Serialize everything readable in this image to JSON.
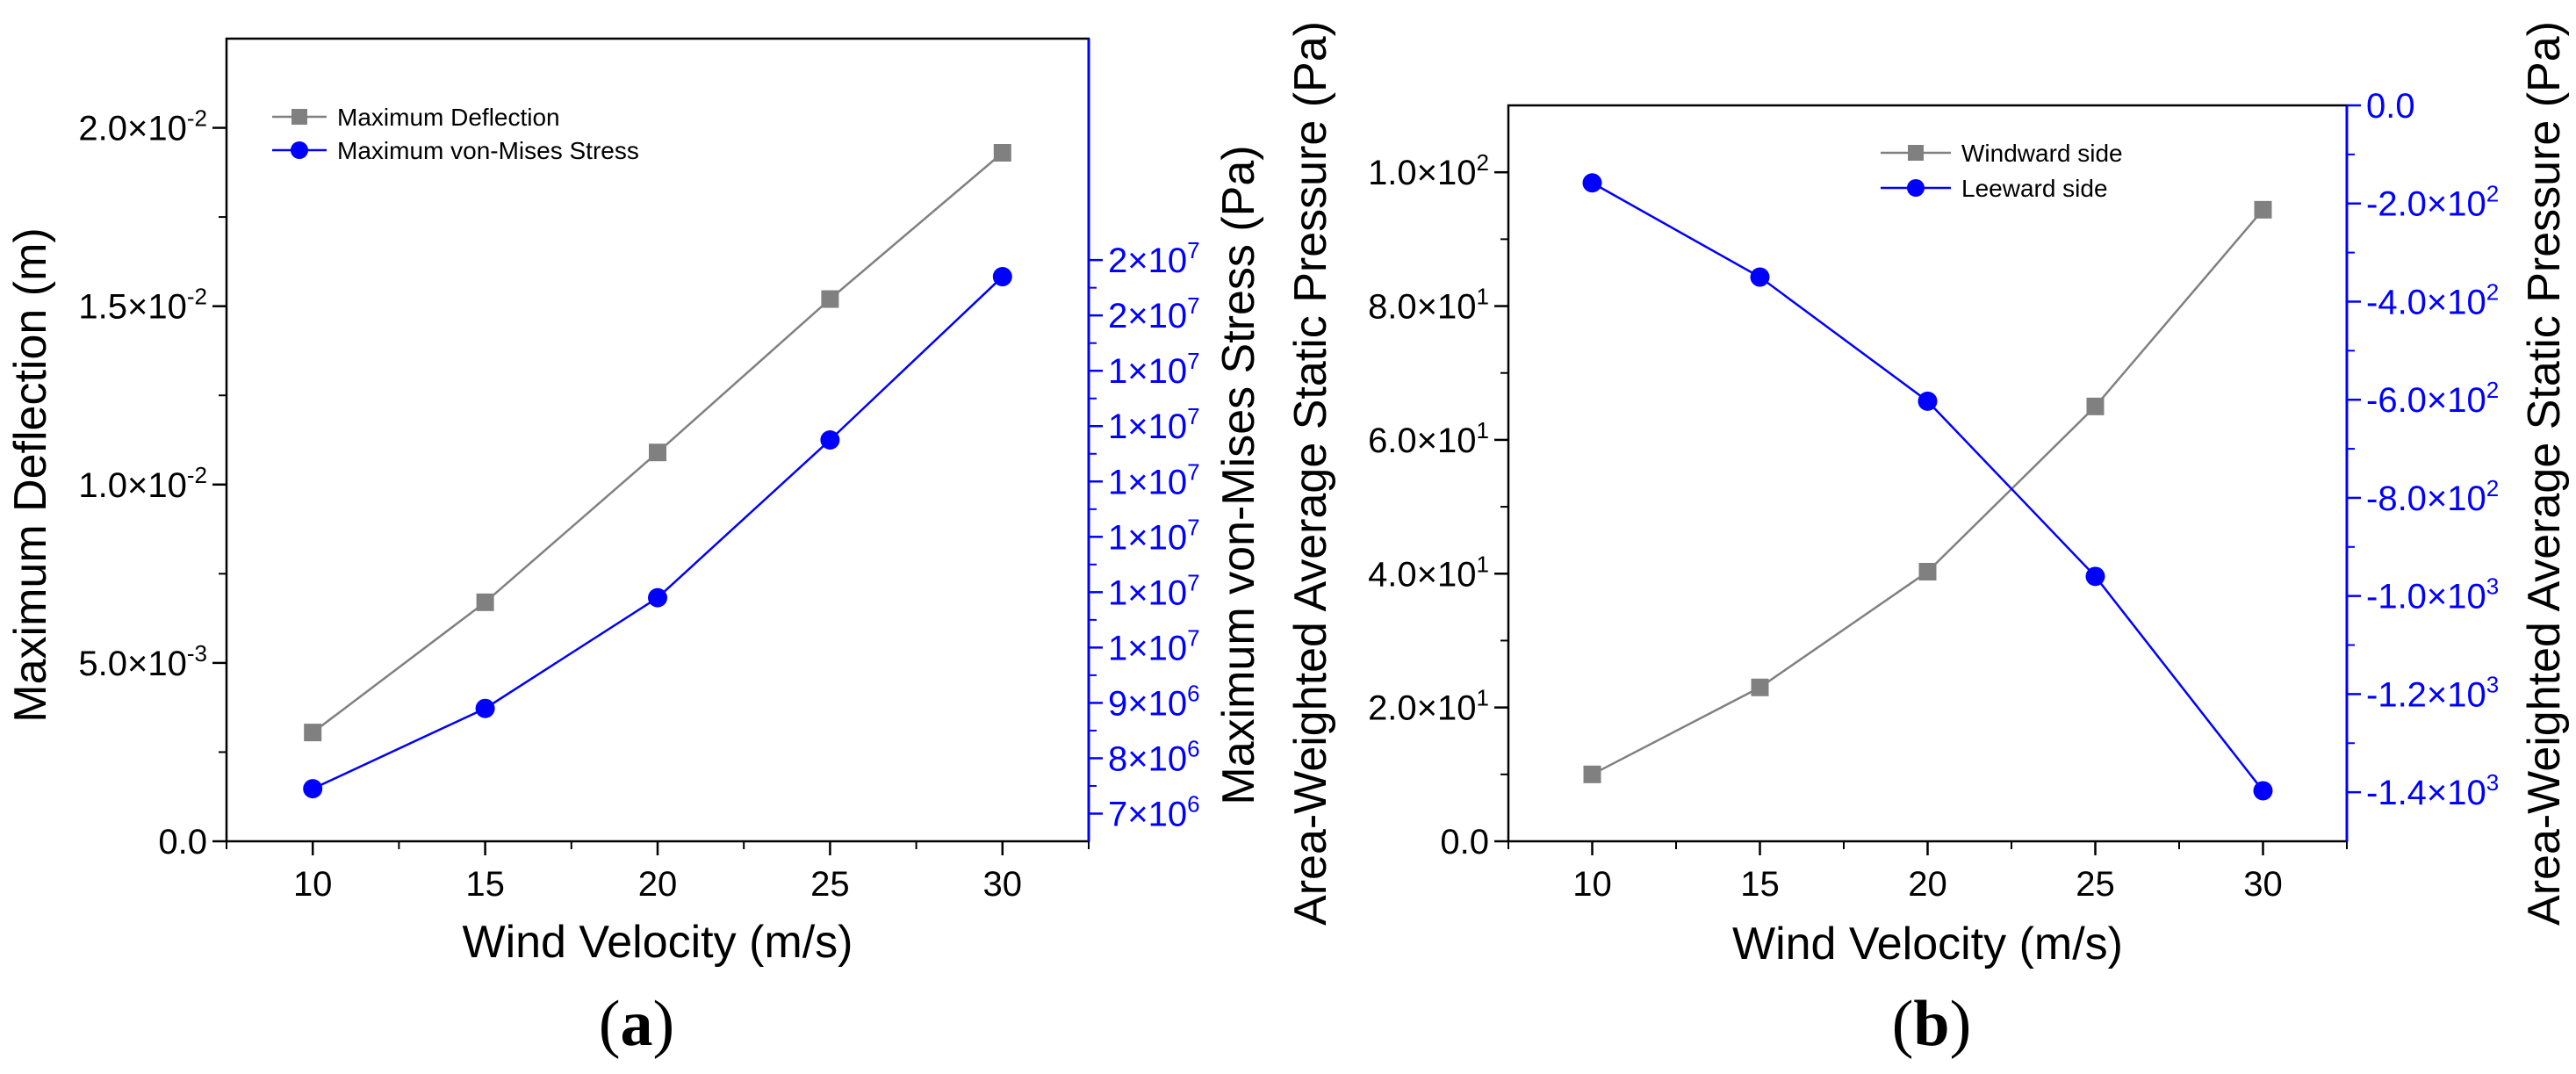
{
  "chart_data": [
    {
      "panel": "a",
      "type": "line",
      "panel_label_open": "(",
      "panel_label_letter": "a",
      "panel_label_close": ")",
      "xlabel": "Wind Velocity (m/s)",
      "ylabel_left": "Maximum Deflection (m)",
      "ylabel_right": "Maximum von-Mises Stress (Pa)",
      "x": [
        10,
        15,
        20,
        25,
        30
      ],
      "xlim": [
        7.5,
        32.5
      ],
      "xticks": [
        "10",
        "15",
        "20",
        "25",
        "30"
      ],
      "ylim_left": [
        0,
        0.0225
      ],
      "yticks_left": [
        {
          "value": 0,
          "mant": "0.0",
          "exp": ""
        },
        {
          "value": 0.005,
          "mant": "5.0×10",
          "exp": "-3"
        },
        {
          "value": 0.01,
          "mant": "1.0×10",
          "exp": "-2"
        },
        {
          "value": 0.015,
          "mant": "1.5×10",
          "exp": "-2"
        },
        {
          "value": 0.02,
          "mant": "2.0×10",
          "exp": "-2"
        }
      ],
      "ylim_right": [
        6500000,
        21000000
      ],
      "yticks_right": [
        {
          "value": 7000000,
          "mant": "7×10",
          "exp": "6"
        },
        {
          "value": 8000000,
          "mant": "8×10",
          "exp": "6"
        },
        {
          "value": 9000000,
          "mant": "9×10",
          "exp": "6"
        },
        {
          "value": 10000000,
          "mant": "1×10",
          "exp": "7"
        },
        {
          "value": 11000000,
          "mant": "1×10",
          "exp": "7"
        },
        {
          "value": 12000000,
          "mant": "1×10",
          "exp": "7"
        },
        {
          "value": 13000000,
          "mant": "1×10",
          "exp": "7"
        },
        {
          "value": 14000000,
          "mant": "1×10",
          "exp": "7"
        },
        {
          "value": 15000000,
          "mant": "1×10",
          "exp": "7"
        },
        {
          "value": 16000000,
          "mant": "2×10",
          "exp": "7"
        },
        {
          "value": 17000000,
          "mant": "2×10",
          "exp": "7"
        }
      ],
      "legend_position": "top-left",
      "series": [
        {
          "name": "Maximum Deflection",
          "axis": "left",
          "marker": "square",
          "color": "#808080",
          "values": [
            0.00305,
            0.0067,
            0.0109,
            0.0152,
            0.0193
          ]
        },
        {
          "name": "Maximum von-Mises Stress",
          "axis": "right",
          "marker": "circle",
          "color": "#0000ff",
          "values": [
            7450000,
            8900000,
            10900000,
            13750000,
            16700000
          ]
        }
      ]
    },
    {
      "panel": "b",
      "type": "line",
      "panel_label_open": "(",
      "panel_label_letter": "b",
      "panel_label_close": ")",
      "xlabel": "Wind Velocity (m/s)",
      "ylabel_left": "Area-Weighted Average Static Pressure (Pa)",
      "ylabel_right": "Area-Weighted Average Static Pressure (Pa)",
      "x": [
        10,
        15,
        20,
        25,
        30
      ],
      "xlim": [
        7.5,
        32.5
      ],
      "xticks": [
        "10",
        "15",
        "20",
        "25",
        "30"
      ],
      "ylim_left": [
        0,
        110
      ],
      "yticks_left": [
        {
          "value": 0,
          "mant": "0.0",
          "exp": ""
        },
        {
          "value": 20,
          "mant": "2.0×10",
          "exp": "1"
        },
        {
          "value": 40,
          "mant": "4.0×10",
          "exp": "1"
        },
        {
          "value": 60,
          "mant": "6.0×10",
          "exp": "1"
        },
        {
          "value": 80,
          "mant": "8.0×10",
          "exp": "1"
        },
        {
          "value": 100,
          "mant": "1.0×10",
          "exp": "2"
        }
      ],
      "ylim_right": [
        -1500,
        0
      ],
      "yticks_right": [
        {
          "value": 0,
          "mant": "0.0",
          "exp": ""
        },
        {
          "value": -200,
          "mant": "-2.0×10",
          "exp": "2"
        },
        {
          "value": -400,
          "mant": "-4.0×10",
          "exp": "2"
        },
        {
          "value": -600,
          "mant": "-6.0×10",
          "exp": "2"
        },
        {
          "value": -800,
          "mant": "-8.0×10",
          "exp": "2"
        },
        {
          "value": -1000,
          "mant": "-1.0×10",
          "exp": "3"
        },
        {
          "value": -1200,
          "mant": "-1.2×10",
          "exp": "3"
        },
        {
          "value": -1400,
          "mant": "-1.4×10",
          "exp": "3"
        }
      ],
      "legend_position": "top-center",
      "series": [
        {
          "name": "Windward side",
          "axis": "left",
          "marker": "square",
          "color": "#808080",
          "values": [
            10,
            23,
            40.3,
            65,
            94.4
          ]
        },
        {
          "name": "Leeward side",
          "axis": "right",
          "marker": "circle",
          "color": "#0000ff",
          "values": [
            -158,
            -350,
            -603,
            -960,
            -1397
          ]
        }
      ]
    }
  ]
}
